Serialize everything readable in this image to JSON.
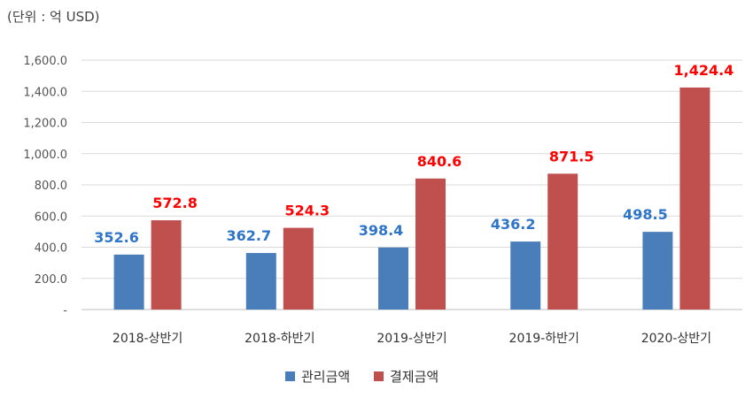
{
  "chart_data": {
    "type": "bar",
    "unit_note": "(단위 : 억 USD)",
    "categories": [
      "2018-상반기",
      "2018-하반기",
      "2019-상반기",
      "2019-하반기",
      "2020-상반기"
    ],
    "series": [
      {
        "name": "관리금액",
        "color": "#4a7ebb",
        "label_color": "#2e75c9",
        "values": [
          352.6,
          362.7,
          398.4,
          436.2,
          498.5
        ],
        "labels": [
          "352.6",
          "362.7",
          "398.4",
          "436.2",
          "498.5"
        ]
      },
      {
        "name": "결제금액",
        "color": "#c0504d",
        "label_color": "#ff0000",
        "values": [
          572.8,
          524.3,
          840.6,
          871.5,
          1424.4
        ],
        "labels": [
          "572.8",
          "524.3",
          "840.6",
          "871.5",
          "1,424.4"
        ]
      }
    ],
    "y_ticks": [
      0,
      200,
      400,
      600,
      800,
      1000,
      1200,
      1400,
      1600
    ],
    "y_tick_labels": [
      "-",
      "200.0",
      "400.0",
      "600.0",
      "800.0",
      "1,000.0",
      "1,200.0",
      "1,400.0",
      "1,600.0"
    ],
    "ylim": [
      0,
      1600
    ],
    "grid": true,
    "legend_position": "bottom"
  }
}
